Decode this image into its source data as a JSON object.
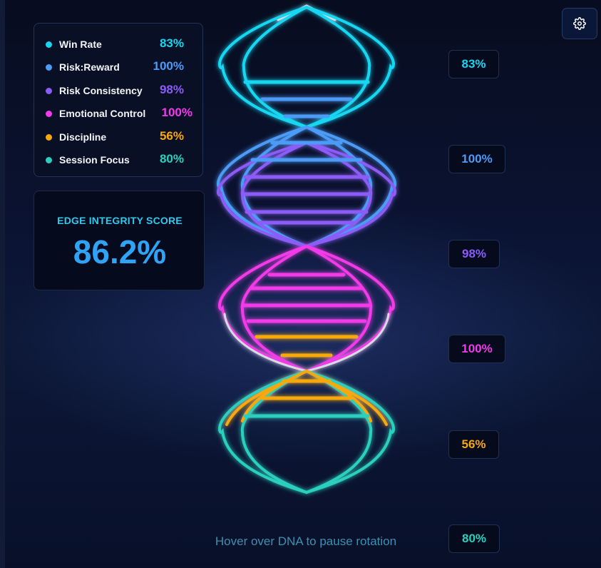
{
  "legend": {
    "items": [
      {
        "label": "Win Rate",
        "value": "83%",
        "color": "#18d6f2"
      },
      {
        "label": "Risk:Reward",
        "value": "100%",
        "color": "#4c9bf7"
      },
      {
        "label": "Risk Consistency",
        "value": "98%",
        "color": "#8b5cf6"
      },
      {
        "label": "Emotional Control",
        "value": "100%",
        "color": "#f13ae8"
      },
      {
        "label": "Discipline",
        "value": "56%",
        "color": "#f7a80d"
      },
      {
        "label": "Session Focus",
        "value": "80%",
        "color": "#2bd0bd"
      }
    ]
  },
  "score": {
    "label": "EDGE INTEGRITY SCORE",
    "value": "86.2%"
  },
  "helix": {
    "badges": [
      "83%",
      "100%",
      "98%",
      "100%",
      "56%",
      "80%"
    ],
    "hint": "Hover over DNA to pause rotation"
  },
  "settings": {
    "icon": "gear-icon"
  }
}
